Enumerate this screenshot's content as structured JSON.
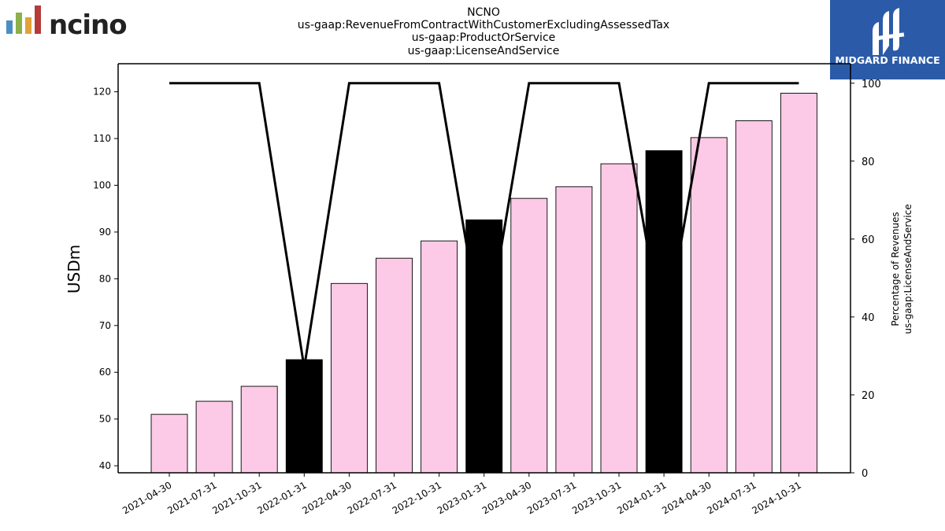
{
  "title_lines": [
    "NCNO",
    "us-gaap:RevenueFromContractWithCustomerExcludingAssessedTax",
    "us-gaap:ProductOrService",
    "us-gaap:LicenseAndService"
  ],
  "logo_left": {
    "text": "ncino",
    "suffix": "."
  },
  "logo_right": {
    "text": "MIDGARD FINANCE",
    "bg_color": "#2b5ba8"
  },
  "chart_data": {
    "type": "bar",
    "title": "NCNO us-gaap:RevenueFromContractWithCustomerExcludingAssessedTax us-gaap:ProductOrService us-gaap:LicenseAndService",
    "ylabel": "USDm",
    "ylabel_right": [
      "Percentage of Revenues",
      "us-gaap:LicenseAndService"
    ],
    "categories": [
      "2021-04-30",
      "2021-07-31",
      "2021-10-31",
      "2022-01-31",
      "2022-04-30",
      "2022-07-31",
      "2022-10-31",
      "2023-01-31",
      "2023-04-30",
      "2023-07-31",
      "2023-10-31",
      "2024-01-31",
      "2024-04-30",
      "2024-07-31",
      "2024-10-31"
    ],
    "series": [
      {
        "values": [
          51.0,
          53.8,
          57.0,
          62.7,
          79.0,
          84.4,
          88.1,
          92.6,
          97.2,
          99.7,
          104.6,
          107.4,
          110.2,
          113.8,
          119.7
        ],
        "bar_colors": [
          "#fccae6",
          "#fccae6",
          "#fccae6",
          "#000000",
          "#fccae6",
          "#fccae6",
          "#fccae6",
          "#000000",
          "#fccae6",
          "#fccae6",
          "#fccae6",
          "#000000",
          "#fccae6",
          "#fccae6",
          "#fccae6"
        ]
      },
      {
        "axis": "right",
        "type": "line",
        "values": [
          100,
          100,
          100,
          27,
          100,
          100,
          100,
          32,
          100,
          100,
          100,
          34,
          100,
          100,
          100
        ],
        "color": "#000000"
      }
    ],
    "ylim": [
      38.5,
      126
    ],
    "yticks": [
      40,
      50,
      60,
      70,
      80,
      90,
      100,
      110,
      120
    ],
    "ylim_right": [
      0,
      105
    ],
    "yticks_right": [
      0,
      20,
      40,
      60,
      80,
      100
    ],
    "grid": false
  }
}
